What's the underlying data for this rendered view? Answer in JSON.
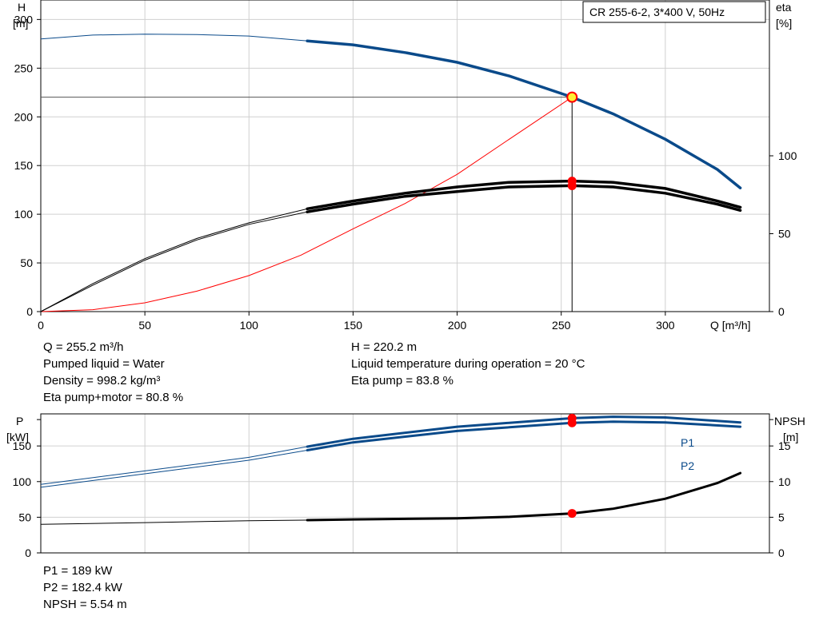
{
  "title_box": "CR 255-6-2, 3*400 V, 50Hz",
  "top_chart": {
    "y_left_label": [
      "H",
      "[m]"
    ],
    "y_right_label": [
      "eta",
      "[%]"
    ],
    "x_label": "Q [m³/h]",
    "x_ticks": [
      "0",
      "50",
      "100",
      "150",
      "200",
      "250",
      "300"
    ],
    "y_left_ticks": [
      "0",
      "50",
      "100",
      "150",
      "200",
      "250",
      "300"
    ],
    "y_right_ticks": [
      "0",
      "50",
      "100"
    ]
  },
  "top_info_left": [
    "Q = 255.2 m³/h",
    "Pumped liquid = Water",
    "Density = 998.2 kg/m³",
    "Eta pump+motor = 80.8 %"
  ],
  "top_info_right": [
    "H = 220.2 m",
    "Liquid temperature during operation = 20 °C",
    "Eta pump = 83.8 %"
  ],
  "bottom_chart": {
    "y_left_label": [
      "P",
      "[kW]"
    ],
    "y_right_label": [
      "NPSH",
      "[m]"
    ],
    "y_left_ticks": [
      "0",
      "50",
      "100",
      "150"
    ],
    "y_right_ticks": [
      "0",
      "5",
      "10",
      "15"
    ],
    "series_labels": [
      "P1",
      "P2"
    ]
  },
  "bottom_info": [
    "P1 = 189 kW",
    "P2 = 182.4 kW",
    "NPSH = 5.54 m"
  ],
  "colors": {
    "head": "#0a4a8a",
    "power": "#0a4a8a",
    "eta": "#000000",
    "system": "#ff0000",
    "npsh": "#000000",
    "grid": "#d0d0d0",
    "duty_point": "#ff0000",
    "duty_fill": "#ffee33"
  },
  "chart_data": [
    {
      "type": "line",
      "x_unit": "m³/h",
      "xlim": [
        0,
        350
      ],
      "ylim": [
        0,
        320
      ],
      "y2lim": [
        0,
        200
      ],
      "duty_point": {
        "q": 255.2,
        "h": 220.2,
        "eta_pump": 83.8,
        "eta_total": 80.8
      },
      "series": [
        {
          "name": "H",
          "axis": "left",
          "x": [
            0,
            25,
            50,
            75,
            100,
            128,
            150,
            175,
            200,
            225,
            250,
            255.2,
            275,
            300,
            325,
            336
          ],
          "y": [
            280,
            284,
            285,
            284.5,
            283,
            278,
            274,
            266,
            256,
            242,
            224,
            220.2,
            203,
            177,
            146,
            127
          ]
        },
        {
          "name": "System",
          "axis": "left",
          "x": [
            0,
            25,
            50,
            75,
            100,
            125,
            150,
            175,
            200,
            225,
            255.2
          ],
          "y": [
            0,
            2,
            9,
            21,
            37,
            58,
            85,
            111,
            141,
            177,
            220.2
          ]
        },
        {
          "name": "Eta pump",
          "axis": "right",
          "x": [
            0,
            25,
            50,
            75,
            100,
            128,
            150,
            175,
            200,
            225,
            255.2,
            275,
            300,
            325,
            336
          ],
          "y": [
            0,
            18,
            34,
            47,
            57,
            66,
            71,
            76,
            80,
            83,
            83.8,
            83,
            79,
            71,
            67
          ]
        },
        {
          "name": "Eta pump+motor",
          "axis": "right",
          "x": [
            0,
            25,
            50,
            75,
            100,
            128,
            150,
            175,
            200,
            225,
            255.2,
            275,
            300,
            325,
            336
          ],
          "y": [
            0,
            17,
            33,
            46,
            56,
            64,
            69,
            74,
            77,
            80,
            80.8,
            80,
            76,
            69,
            65
          ]
        }
      ]
    },
    {
      "type": "line",
      "x_unit": "m³/h",
      "xlim": [
        0,
        350
      ],
      "ylim": [
        0,
        195
      ],
      "y2lim": [
        0,
        19.5
      ],
      "duty_point": {
        "p1": 189,
        "p2": 182.4,
        "npsh": 5.54
      },
      "series": [
        {
          "name": "P1",
          "axis": "left",
          "x": [
            0,
            50,
            100,
            128,
            150,
            200,
            255.2,
            275,
            300,
            336
          ],
          "y": [
            96,
            115,
            134,
            149,
            160,
            177,
            189,
            191,
            190,
            183
          ]
        },
        {
          "name": "P2",
          "axis": "left",
          "x": [
            0,
            50,
            100,
            128,
            150,
            200,
            255.2,
            275,
            300,
            336
          ],
          "y": [
            92,
            111,
            130,
            144,
            155,
            171,
            182.4,
            184,
            183,
            177
          ]
        },
        {
          "name": "NPSH",
          "axis": "right",
          "x": [
            0,
            50,
            100,
            128,
            150,
            200,
            225,
            255.2,
            275,
            300,
            325,
            336
          ],
          "y": [
            4.0,
            4.25,
            4.5,
            4.6,
            4.7,
            4.85,
            5.05,
            5.54,
            6.2,
            7.6,
            9.8,
            11.2
          ]
        }
      ]
    }
  ]
}
